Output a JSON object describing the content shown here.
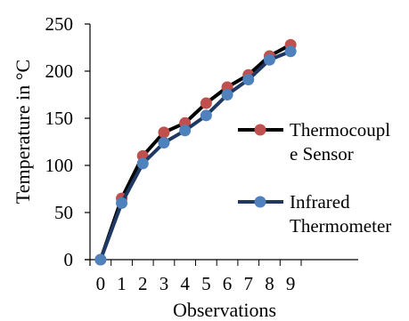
{
  "chart_data": {
    "type": "line",
    "title": "",
    "xlabel": "Observations",
    "ylabel": "Temperature in °C",
    "x": [
      0,
      1,
      2,
      3,
      4,
      5,
      6,
      7,
      8,
      9
    ],
    "ylim": [
      0,
      250
    ],
    "yticks": [
      0,
      50,
      100,
      150,
      200,
      250
    ],
    "xlim": [
      -0.5,
      12.2
    ],
    "grid": false,
    "legend_position": "right",
    "series": [
      {
        "name": "Thermocouple Sensor",
        "legend_lines": [
          "Thermocoupl",
          "e Sensor"
        ],
        "values": [
          0,
          65,
          110,
          135,
          145,
          166,
          183,
          196,
          216,
          228
        ],
        "line_color": "#000000",
        "marker_color": "#c0504d"
      },
      {
        "name": "Infrared Thermometer",
        "legend_lines": [
          "Infrared",
          "Thermometer"
        ],
        "values": [
          0,
          60,
          102,
          124,
          137,
          153,
          175,
          191,
          212,
          221
        ],
        "line_color": "#1f3864",
        "marker_color": "#4f81bd"
      }
    ]
  }
}
